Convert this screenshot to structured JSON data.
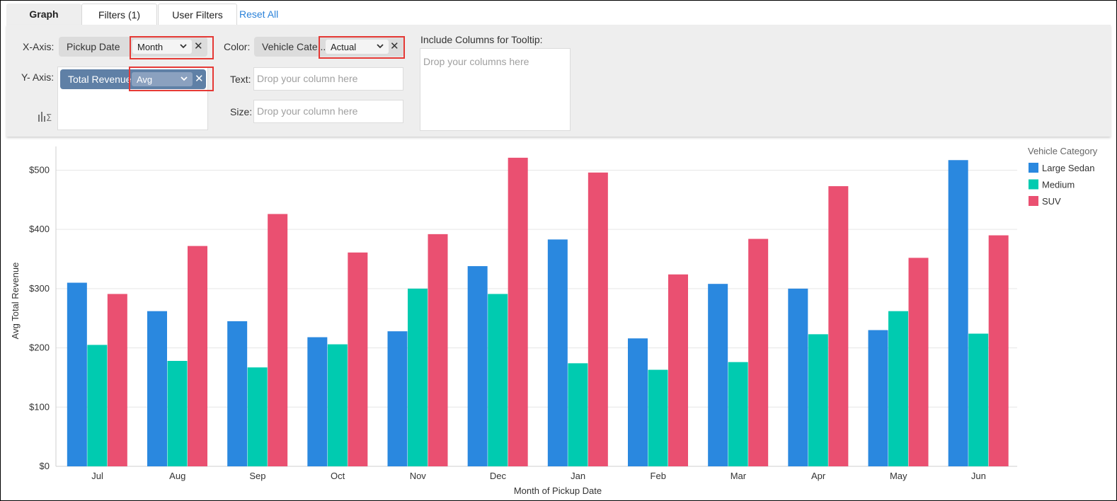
{
  "tabs": [
    {
      "label": "Graph"
    },
    {
      "label": "Filters  (1)"
    },
    {
      "label": "User Filters"
    }
  ],
  "reset_all": "Reset All",
  "shelf": {
    "x_axis_label": "X-Axis:",
    "x_field": "Pickup Date",
    "x_agg": "Month",
    "y_axis_label": "Y- Axis:",
    "y_field": "Total Revenue",
    "y_agg": "Avg",
    "color_label": "Color:",
    "color_field": "Vehicle Cate...",
    "color_agg": "Actual",
    "text_label": "Text:",
    "text_placeholder": "Drop your column here",
    "size_label": "Size:",
    "size_placeholder": "Drop your column here",
    "tooltip_label": "Include Columns for Tooltip:",
    "tooltip_placeholder": "Drop your columns here"
  },
  "chart_data": {
    "type": "bar",
    "xlabel": "Month of Pickup Date",
    "ylabel": "Avg Total Revenue",
    "ylim": [
      0,
      540
    ],
    "yticks": [
      "$0",
      "$100",
      "$200",
      "$300",
      "$400",
      "$500"
    ],
    "categories": [
      "Jul",
      "Aug",
      "Sep",
      "Oct",
      "Nov",
      "Dec",
      "Jan",
      "Feb",
      "Mar",
      "Apr",
      "May",
      "Jun"
    ],
    "legend_title": "Vehicle Category",
    "legend_position": "right",
    "series": [
      {
        "name": "Large Sedan",
        "color": "#2a88df",
        "values": [
          310,
          262,
          245,
          218,
          228,
          338,
          383,
          216,
          308,
          300,
          230,
          517
        ]
      },
      {
        "name": "Medium",
        "color": "#00cbb0",
        "values": [
          205,
          178,
          167,
          206,
          300,
          291,
          174,
          163,
          176,
          223,
          262,
          224
        ]
      },
      {
        "name": "SUV",
        "color": "#ea5071",
        "values": [
          291,
          372,
          426,
          361,
          392,
          521,
          496,
          324,
          384,
          473,
          352,
          390
        ]
      }
    ]
  }
}
